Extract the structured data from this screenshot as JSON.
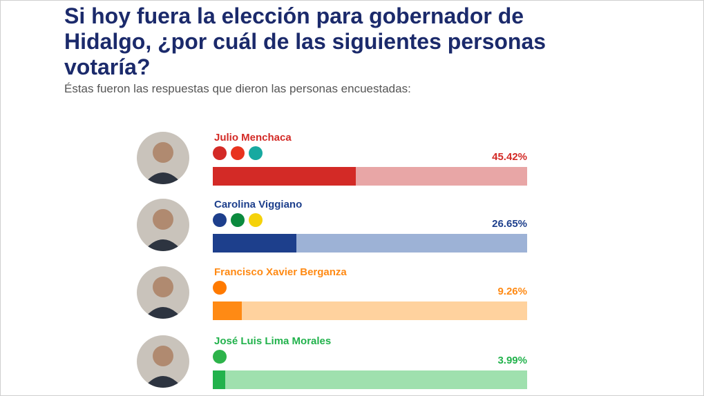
{
  "chart_data": {
    "type": "bar",
    "title": "Si hoy fuera la elección para gobernador de Hidalgo, ¿por cuál de las siguientes personas votaría?",
    "subtitle": "Éstas fueron las respuestas que dieron las personas encuestadas:",
    "categories": [
      "Julio Menchaca",
      "Carolina Viggiano",
      "Francisco Xavier Berganza",
      "José Luis Lima Morales"
    ],
    "values": [
      45.42,
      26.65,
      9.26,
      3.99
    ],
    "value_labels": [
      "45.42%",
      "26.65%",
      "9.26%",
      "3.99%"
    ],
    "colors": [
      "#d32a26",
      "#1d3f8c",
      "#ff8a14",
      "#22b24c"
    ],
    "track_colors": [
      "#e8a6a6",
      "#9db2d6",
      "#ffd29e",
      "#9fe0ae"
    ],
    "xlim": [
      0,
      100
    ]
  }
}
